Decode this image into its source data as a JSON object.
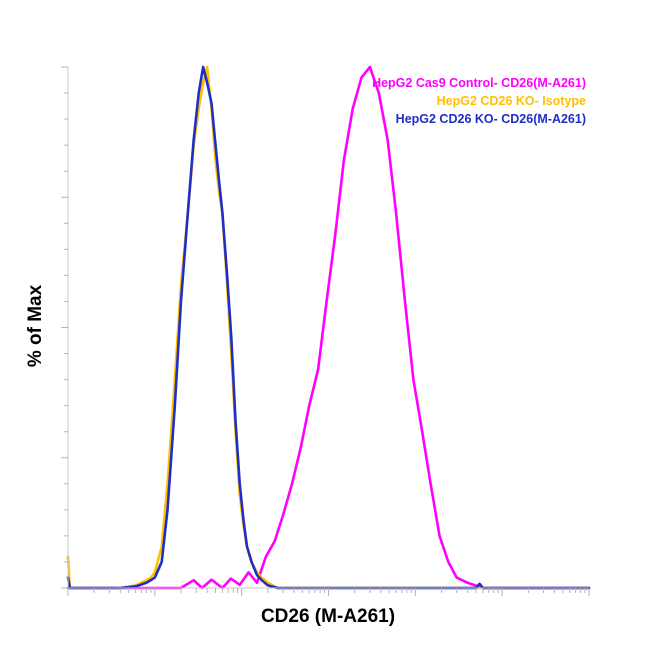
{
  "chart_data": {
    "type": "line",
    "title": "",
    "xlabel": "CD26 (M-A261)",
    "ylabel": "% of Max",
    "xscale": "log",
    "xlim": [
      1,
      1000000
    ],
    "ylim": [
      0,
      100
    ],
    "grid": false,
    "legend_position": "top-right",
    "series": [
      {
        "name": "HepG2 Cas9 Control- CD26(M-A261)",
        "color": "#ff00ff",
        "x": [
          1,
          20,
          28,
          35,
          45,
          60,
          75,
          95,
          120,
          150,
          190,
          240,
          300,
          380,
          480,
          600,
          760,
          950,
          1200,
          1500,
          1900,
          2400,
          3000,
          3800,
          4800,
          6000,
          7600,
          9500,
          12000,
          15000,
          19000,
          24000,
          30000,
          40000,
          60000,
          1000000
        ],
        "values": [
          0,
          0,
          1.5,
          0,
          1.6,
          0,
          1.8,
          0.6,
          3,
          1,
          6,
          9,
          14,
          20,
          27,
          35,
          42,
          55,
          68,
          82,
          92,
          98,
          100,
          95,
          86,
          72,
          55,
          40,
          30,
          20,
          10,
          5,
          2,
          1,
          0,
          0
        ]
      },
      {
        "name": "HepG2 CD26 KO- Isotype",
        "color": "#ffc000",
        "x": [
          1,
          1.05,
          1.3,
          2,
          4,
          6,
          8,
          9,
          10,
          12,
          14,
          17,
          20,
          24,
          28,
          32,
          36,
          40,
          45,
          50,
          55,
          60,
          68,
          76,
          85,
          95,
          105,
          115,
          130,
          150,
          170,
          200,
          260,
          1000000
        ],
        "values": [
          6,
          0,
          0,
          0,
          0,
          0.5,
          1.5,
          2,
          3,
          8,
          20,
          40,
          58,
          72,
          85,
          92,
          97,
          100,
          92,
          82,
          76,
          72,
          58,
          45,
          30,
          18,
          12,
          8,
          5,
          3,
          2,
          1,
          0,
          0
        ]
      },
      {
        "name": "HepG2 CD26 KO- CD26(M-A261)",
        "color": "#1f2fc4",
        "x": [
          1,
          1.05,
          1.3,
          2,
          4,
          6,
          8,
          9,
          10,
          12,
          14,
          17,
          20,
          24,
          28,
          32,
          36,
          40,
          45,
          50,
          55,
          60,
          68,
          76,
          85,
          95,
          105,
          115,
          130,
          150,
          170,
          200,
          260,
          300,
          50000,
          55000,
          60000,
          1000000
        ],
        "values": [
          2,
          0,
          0,
          0,
          0,
          0.3,
          1,
          1.5,
          2,
          5,
          15,
          35,
          55,
          72,
          86,
          95,
          100,
          97,
          93,
          85,
          78,
          72,
          60,
          48,
          32,
          20,
          13,
          8,
          5,
          2.5,
          1.5,
          0.5,
          0,
          0,
          0,
          0.8,
          0,
          0
        ]
      }
    ]
  }
}
